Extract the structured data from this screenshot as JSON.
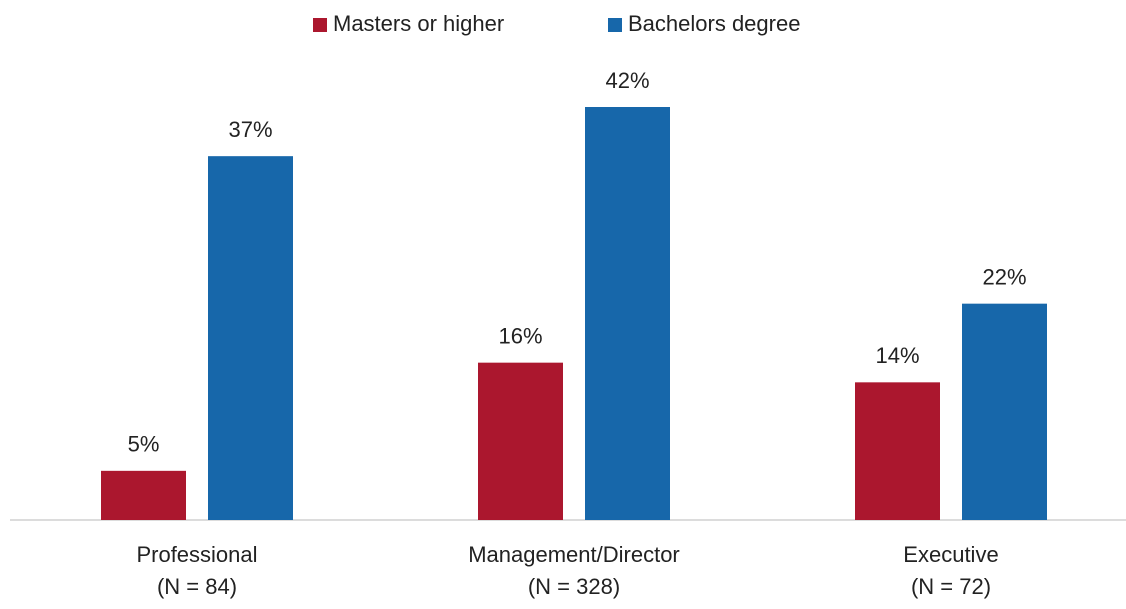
{
  "chart_data": {
    "type": "bar",
    "categories": [
      [
        "Professional",
        "(N = 84)"
      ],
      [
        "Management/Director",
        "(N = 328)"
      ],
      [
        "Executive",
        "(N = 72)"
      ]
    ],
    "series": [
      {
        "name": "Masters or higher",
        "color": "#ab172e",
        "values": [
          5,
          16,
          14
        ],
        "value_labels": [
          "5%",
          "16%",
          "14%"
        ]
      },
      {
        "name": "Bachelors degree",
        "color": "#1767aa",
        "values": [
          37,
          42,
          22
        ],
        "value_labels": [
          "37%",
          "42%",
          "22%"
        ]
      }
    ],
    "legend": "top"
  }
}
